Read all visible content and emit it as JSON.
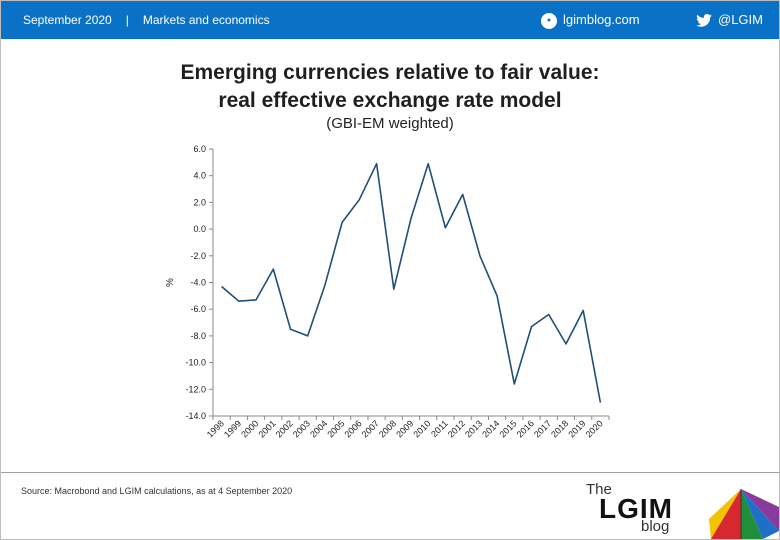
{
  "header": {
    "date": "September 2020",
    "separator": "|",
    "category": "Markets and economics",
    "site": "lgimblog.com",
    "site_icon": "globe-icon",
    "twitter_handle": "@LGIM",
    "twitter_icon": "twitter-bird-icon",
    "bar_color": "#0a72c6"
  },
  "chart_data": {
    "type": "line",
    "title_line1": "Emerging currencies relative to fair value:",
    "title_line2": "real effective exchange rate model",
    "subtitle": "(GBI-EM weighted)",
    "ylabel": "%",
    "xlabel": "",
    "ylim": [
      -14,
      6
    ],
    "yticks": [
      6,
      4,
      2,
      0,
      -2,
      -4,
      -6,
      -8,
      -10,
      -12,
      -14
    ],
    "ytick_labels": [
      "6.0",
      "4.0",
      "2.0",
      "0.0",
      "-2.0",
      "-4.0",
      "-6.0",
      "-8.0",
      "-10.0",
      "-12.0",
      "-14.0"
    ],
    "categories": [
      "1998",
      "1999",
      "2000",
      "2001",
      "2002",
      "2003",
      "2004",
      "2005",
      "2006",
      "2007",
      "2008",
      "2009",
      "2010",
      "2011",
      "2012",
      "2013",
      "2014",
      "2015",
      "2016",
      "2017",
      "2018",
      "2019",
      "2020"
    ],
    "series": [
      {
        "color": "#1f4e79",
        "x": [
          1998,
          1999,
          2000,
          2001,
          2002,
          2003,
          2004,
          2005,
          2006,
          2007,
          2008,
          2009,
          2010,
          2011,
          2012,
          2013,
          2014,
          2015,
          2016,
          2017,
          2018,
          2019,
          2020
        ],
        "values": [
          -4.3,
          -5.4,
          -5.3,
          -3.0,
          -7.5,
          -8.0,
          -4.2,
          0.5,
          2.2,
          4.9,
          -4.5,
          0.8,
          4.9,
          0.1,
          2.6,
          -2.0,
          -5.0,
          -11.6,
          -7.3,
          -6.4,
          -8.6,
          -6.1,
          -13.0
        ]
      }
    ],
    "grid": false,
    "legend": "none"
  },
  "footer": {
    "source": "Source: Macrobond and LGIM  calculations, as at 4 September 2020",
    "logo_the": "The",
    "logo_main": "LGIM",
    "logo_blog": "blog",
    "logo_icon": "umbrella-icon"
  }
}
